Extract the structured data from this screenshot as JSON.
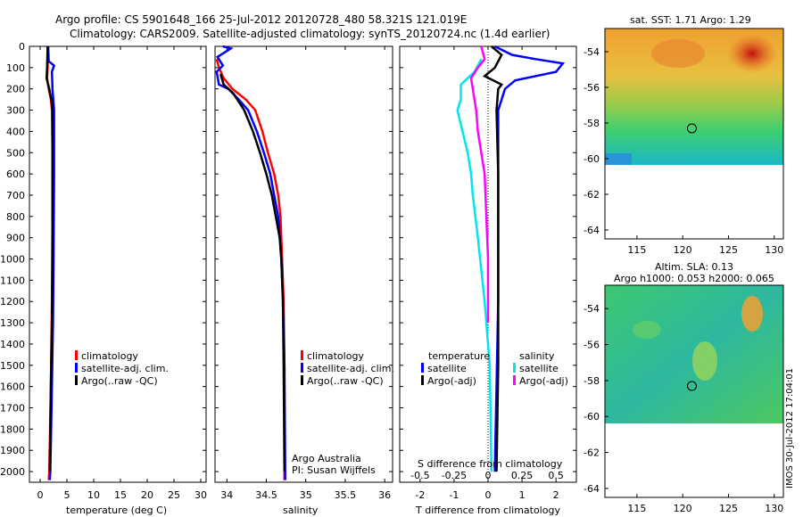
{
  "title_line1": "Argo profile: CS 5901648_166 25-Jul-2012 20120728_480 58.321S 121.019E",
  "title_line2": "Climatology: CARS2009. Satellite-adjusted climatology: synTS_20120724.nc (1.4d earlier)",
  "footer_vertical": "IMOS 30-Jul-2012 17:04:01",
  "colors": {
    "red": "#ff0000",
    "blue": "#0000ff",
    "black": "#000000",
    "cyan": "#00e5ee",
    "magenta": "#ff00ff"
  },
  "chart_data": [
    {
      "type": "line",
      "id": "temperature",
      "xlabel": "temperature (deg C)",
      "xlim": [
        -2,
        31
      ],
      "ylim": [
        0,
        2050
      ],
      "y_reversed": true,
      "xticks": [
        0,
        5,
        10,
        15,
        20,
        25,
        30
      ],
      "yticks": [
        0,
        100,
        200,
        300,
        400,
        500,
        600,
        700,
        800,
        900,
        1000,
        1100,
        1200,
        1300,
        1400,
        1500,
        1600,
        1700,
        1800,
        1900,
        2000
      ],
      "legend": [
        "climatology",
        "satellite-adj. clim.",
        "Argo(..raw -QC)"
      ],
      "series": [
        {
          "name": "climatology",
          "color": "#ff0000",
          "points": [
            [
              1.4,
              0
            ],
            [
              1.4,
              100
            ],
            [
              1.3,
              150
            ],
            [
              1.6,
              200
            ],
            [
              2.0,
              250
            ],
            [
              2.2,
              300
            ],
            [
              2.3,
              500
            ],
            [
              2.3,
              800
            ],
            [
              2.2,
              1200
            ],
            [
              2.0,
              1600
            ],
            [
              1.7,
              2000
            ],
            [
              1.6,
              2040
            ]
          ]
        },
        {
          "name": "satellite-adj. clim.",
          "color": "#0000ff",
          "points": [
            [
              1.5,
              0
            ],
            [
              1.6,
              70
            ],
            [
              2.6,
              90
            ],
            [
              2.2,
              120
            ],
            [
              2.3,
              200
            ],
            [
              2.6,
              300
            ],
            [
              2.6,
              600
            ],
            [
              2.5,
              1000
            ],
            [
              2.4,
              1300
            ],
            [
              2.2,
              1600
            ],
            [
              1.9,
              2000
            ],
            [
              1.8,
              2040
            ]
          ]
        },
        {
          "name": "Argo(..raw -QC)",
          "color": "#000000",
          "points": [
            [
              1.4,
              0
            ],
            [
              1.3,
              100
            ],
            [
              1.2,
              150
            ],
            [
              1.7,
              200
            ],
            [
              2.1,
              250
            ],
            [
              2.3,
              300
            ],
            [
              2.3,
              600
            ],
            [
              2.3,
              1000
            ],
            [
              2.2,
              1300
            ],
            [
              2.0,
              1600
            ],
            [
              1.8,
              2000
            ]
          ]
        }
      ]
    },
    {
      "type": "line",
      "id": "salinity",
      "xlabel": "salinity",
      "xlim": [
        33.85,
        36.1
      ],
      "ylim": [
        0,
        2050
      ],
      "y_reversed": true,
      "xticks": [
        34,
        34.5,
        35,
        35.5,
        36
      ],
      "legend": [
        "climatology",
        "satellite-adj. clim.",
        "Argo(..raw -QC)"
      ],
      "annotations": [
        "Argo Australia",
        "PI: Susan Wijffels"
      ],
      "series": [
        {
          "name": "climatology",
          "color": "#ff0000",
          "points": [
            [
              33.87,
              60
            ],
            [
              33.9,
              100
            ],
            [
              33.96,
              150
            ],
            [
              34.07,
              200
            ],
            [
              34.24,
              250
            ],
            [
              34.36,
              300
            ],
            [
              34.45,
              400
            ],
            [
              34.52,
              500
            ],
            [
              34.6,
              600
            ],
            [
              34.65,
              700
            ],
            [
              34.68,
              800
            ],
            [
              34.7,
              1000
            ],
            [
              34.72,
              1200
            ],
            [
              34.73,
              1500
            ],
            [
              34.73,
              2040
            ]
          ]
        },
        {
          "name": "satellite-adj. clim.",
          "color": "#0000ff",
          "points": [
            [
              33.95,
              0
            ],
            [
              34.05,
              10
            ],
            [
              33.88,
              50
            ],
            [
              33.95,
              90
            ],
            [
              33.87,
              120
            ],
            [
              33.9,
              180
            ],
            [
              34.02,
              200
            ],
            [
              34.15,
              250
            ],
            [
              34.27,
              300
            ],
            [
              34.38,
              400
            ],
            [
              34.47,
              500
            ],
            [
              34.55,
              600
            ],
            [
              34.6,
              700
            ],
            [
              34.65,
              800
            ],
            [
              34.69,
              1000
            ],
            [
              34.71,
              1200
            ],
            [
              34.73,
              1500
            ],
            [
              34.74,
              2040
            ]
          ]
        },
        {
          "name": "Argo(..raw -QC)",
          "color": "#000000",
          "points": [
            [
              33.92,
              130
            ],
            [
              33.96,
              180
            ],
            [
              34.08,
              220
            ],
            [
              34.22,
              300
            ],
            [
              34.33,
              400
            ],
            [
              34.42,
              500
            ],
            [
              34.5,
              600
            ],
            [
              34.57,
              700
            ],
            [
              34.62,
              800
            ],
            [
              34.67,
              900
            ],
            [
              34.69,
              1000
            ],
            [
              34.71,
              1200
            ],
            [
              34.72,
              1500
            ],
            [
              34.73,
              2000
            ]
          ]
        }
      ]
    },
    {
      "type": "line",
      "id": "difference",
      "xlabel": "T difference from climatology",
      "xlabel_top": "S difference from climatology",
      "xlim": [
        -2.6,
        2.6
      ],
      "ylim": [
        0,
        2050
      ],
      "y_reversed": true,
      "xticks": [
        -2,
        -1,
        0,
        1,
        2
      ],
      "xticks_top": [
        {
          "v": -2.0,
          "label": "-0.5"
        },
        {
          "v": -1.0,
          "label": "-0.25"
        },
        {
          "v": 0,
          "label": "0"
        },
        {
          "v": 1.0,
          "label": "0.25"
        },
        {
          "v": 2.0,
          "label": "0.5"
        }
      ],
      "legend_title_left": "temperature",
      "legend_title_right": "salinity",
      "legend": [
        "satellite",
        "Argo(-adj)",
        "satellite",
        "Argo(-adj)"
      ],
      "series": [
        {
          "name": "satellite",
          "color": "#0000ff",
          "points": [
            [
              0.2,
              0
            ],
            [
              0.7,
              40
            ],
            [
              1.4,
              60
            ],
            [
              2.2,
              80
            ],
            [
              2.0,
              120
            ],
            [
              0.8,
              160
            ],
            [
              0.5,
              200
            ],
            [
              0.3,
              300
            ],
            [
              0.3,
              600
            ],
            [
              0.3,
              1200
            ],
            [
              0.25,
              1600
            ],
            [
              0.2,
              2000
            ]
          ]
        },
        {
          "name": "Argo(-adj)",
          "color": "#000000",
          "points": [
            [
              0.1,
              0
            ],
            [
              0.4,
              40
            ],
            [
              0.2,
              100
            ],
            [
              -0.1,
              140
            ],
            [
              0.4,
              180
            ],
            [
              0.3,
              200
            ],
            [
              0.25,
              300
            ],
            [
              0.3,
              600
            ],
            [
              0.3,
              1200
            ],
            [
              0.3,
              1500
            ],
            [
              0.25,
              2000
            ]
          ]
        },
        {
          "name": "satellite",
          "color": "#00e5ee",
          "points": [
            [
              -0.2,
              60
            ],
            [
              -0.4,
              120
            ],
            [
              -0.8,
              180
            ],
            [
              -0.8,
              250
            ],
            [
              -0.9,
              300
            ],
            [
              -0.75,
              400
            ],
            [
              -0.6,
              500
            ],
            [
              -0.5,
              600
            ],
            [
              -0.45,
              700
            ],
            [
              -0.3,
              900
            ],
            [
              -0.1,
              1200
            ],
            [
              0.05,
              1500
            ],
            [
              0.1,
              2000
            ]
          ]
        },
        {
          "name": "Argo(-adj)",
          "color": "#ff00ff",
          "points": [
            [
              -0.2,
              0
            ],
            [
              -0.1,
              60
            ],
            [
              -0.3,
              100
            ],
            [
              -0.5,
              150
            ],
            [
              -0.45,
              200
            ],
            [
              -0.35,
              300
            ],
            [
              -0.3,
              400
            ],
            [
              -0.2,
              500
            ],
            [
              -0.1,
              600
            ],
            [
              -0.05,
              800
            ],
            [
              0,
              1000
            ],
            [
              0,
              1300
            ]
          ]
        }
      ]
    },
    {
      "type": "heatmap",
      "id": "sst_map",
      "title": "sat. SST: 1.71  Argo: 1.29",
      "xlim": [
        111.5,
        131
      ],
      "ylim": [
        -64.5,
        -52.7
      ],
      "xticks": [
        115,
        120,
        125,
        130
      ],
      "yticks": [
        -54,
        -56,
        -58,
        -60,
        -62,
        -64
      ],
      "data_extent": {
        "lon": [
          111.5,
          131
        ],
        "lat": [
          -60,
          -52.7
        ]
      },
      "marker": {
        "lon": 121,
        "lat": -58.3
      }
    },
    {
      "type": "heatmap",
      "id": "sla_map",
      "title": "Altim. SLA: 0.13",
      "subtitle": "Argo h1000: 0.053  h2000: 0.065",
      "xlim": [
        111.5,
        131
      ],
      "ylim": [
        -64.5,
        -52.7
      ],
      "xticks": [
        115,
        120,
        125,
        130
      ],
      "yticks": [
        -54,
        -56,
        -58,
        -60,
        -62,
        -64
      ],
      "data_extent": {
        "lon": [
          111.5,
          131
        ],
        "lat": [
          -60,
          -52.7
        ]
      },
      "marker": {
        "lon": 121,
        "lat": -58.3
      }
    }
  ]
}
